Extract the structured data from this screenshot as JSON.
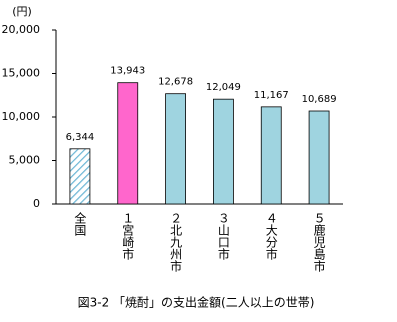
{
  "chart_data": {
    "type": "bar",
    "title": "図3-2 「焼酎」の支出金額(二人以上の世帯)",
    "y_label": "(円)",
    "categories": [
      "全国",
      "１宮崎市",
      "２北九州市",
      "３山口市",
      "４大分市",
      "５鹿児島市"
    ],
    "values": [
      6344,
      13943,
      12678,
      12049,
      11167,
      10689
    ],
    "value_labels": [
      "6,344",
      "13,943",
      "12,678",
      "12,049",
      "11,167",
      "10,689"
    ],
    "colors": [
      "#6fb8d6",
      "#ff66cc",
      "#9fd4e0",
      "#9fd4e0",
      "#9fd4e0",
      "#9fd4e0"
    ],
    "hatched": [
      true,
      false,
      false,
      false,
      false,
      false
    ],
    "ylim": [
      0,
      20000
    ],
    "yticks": [
      {
        "value": 0,
        "label": "0"
      },
      {
        "value": 5000,
        "label": "5,000"
      },
      {
        "value": 10000,
        "label": "10,000"
      },
      {
        "value": 15000,
        "label": "15,000"
      },
      {
        "value": 20000,
        "label": "20,000"
      }
    ]
  }
}
